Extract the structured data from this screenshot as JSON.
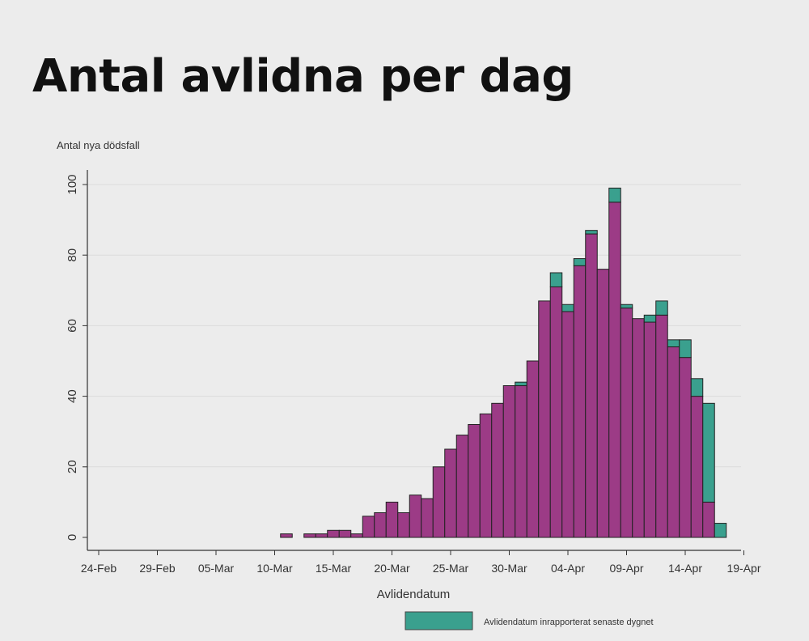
{
  "title": "Antal avlidna per dag",
  "chart_data": {
    "type": "bar",
    "stacked": true,
    "ylabel": "Antal nya dödsfall",
    "xlabel": "Avlidendatum",
    "ylim": [
      0,
      100
    ],
    "yticks": [
      0,
      20,
      40,
      60,
      80,
      100
    ],
    "x_start": "24-Feb",
    "x_days": 55,
    "xticks": [
      {
        "day": 0,
        "label": "24-Feb"
      },
      {
        "day": 5,
        "label": "29-Feb"
      },
      {
        "day": 10,
        "label": "05-Mar"
      },
      {
        "day": 15,
        "label": "10-Mar"
      },
      {
        "day": 20,
        "label": "15-Mar"
      },
      {
        "day": 25,
        "label": "20-Mar"
      },
      {
        "day": 30,
        "label": "25-Mar"
      },
      {
        "day": 35,
        "label": "30-Mar"
      },
      {
        "day": 40,
        "label": "04-Apr"
      },
      {
        "day": 45,
        "label": "09-Apr"
      },
      {
        "day": 50,
        "label": "14-Apr"
      },
      {
        "day": 55,
        "label": "19-Apr"
      }
    ],
    "grid": true,
    "legend_position": "bottom-right",
    "colors": {
      "base": "#9c3b86",
      "new": "#3aa08e",
      "outline": "#222222",
      "grid": "#dcdcdc"
    },
    "bars": [
      {
        "day": 16,
        "base": 1,
        "new": 0
      },
      {
        "day": 18,
        "base": 1,
        "new": 0
      },
      {
        "day": 19,
        "base": 1,
        "new": 0
      },
      {
        "day": 20,
        "base": 2,
        "new": 0
      },
      {
        "day": 21,
        "base": 2,
        "new": 0
      },
      {
        "day": 22,
        "base": 1,
        "new": 0
      },
      {
        "day": 23,
        "base": 6,
        "new": 0
      },
      {
        "day": 24,
        "base": 7,
        "new": 0
      },
      {
        "day": 25,
        "base": 10,
        "new": 0
      },
      {
        "day": 26,
        "base": 7,
        "new": 0
      },
      {
        "day": 27,
        "base": 12,
        "new": 0
      },
      {
        "day": 28,
        "base": 11,
        "new": 0
      },
      {
        "day": 29,
        "base": 20,
        "new": 0
      },
      {
        "day": 30,
        "base": 25,
        "new": 0
      },
      {
        "day": 31,
        "base": 29,
        "new": 0
      },
      {
        "day": 32,
        "base": 32,
        "new": 0
      },
      {
        "day": 33,
        "base": 35,
        "new": 0
      },
      {
        "day": 34,
        "base": 38,
        "new": 0
      },
      {
        "day": 35,
        "base": 43,
        "new": 0
      },
      {
        "day": 36,
        "base": 43,
        "new": 1
      },
      {
        "day": 37,
        "base": 50,
        "new": 0
      },
      {
        "day": 38,
        "base": 67,
        "new": 0
      },
      {
        "day": 39,
        "base": 71,
        "new": 4
      },
      {
        "day": 40,
        "base": 64,
        "new": 2
      },
      {
        "day": 41,
        "base": 77,
        "new": 2
      },
      {
        "day": 42,
        "base": 86,
        "new": 1
      },
      {
        "day": 43,
        "base": 76,
        "new": 0
      },
      {
        "day": 44,
        "base": 95,
        "new": 4
      },
      {
        "day": 45,
        "base": 65,
        "new": 1
      },
      {
        "day": 46,
        "base": 62,
        "new": 0
      },
      {
        "day": 47,
        "base": 61,
        "new": 2
      },
      {
        "day": 48,
        "base": 63,
        "new": 4
      },
      {
        "day": 49,
        "base": 54,
        "new": 2
      },
      {
        "day": 50,
        "base": 51,
        "new": 5
      },
      {
        "day": 51,
        "base": 40,
        "new": 5
      },
      {
        "day": 52,
        "base": 10,
        "new": 28
      },
      {
        "day": 53,
        "base": 0,
        "new": 4
      }
    ],
    "legend": [
      {
        "label": "Avlidendatum inrapporterat senaste dygnet",
        "color_key": "new"
      }
    ]
  }
}
